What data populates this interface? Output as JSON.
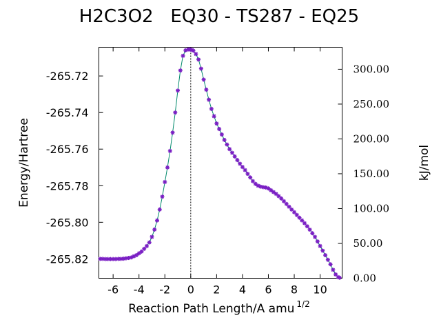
{
  "chart_data": {
    "type": "scatter",
    "title": "H2C3O2   EQ30 - TS287 - EQ25",
    "xlabel": "Reaction Path Length/A amu",
    "xlabel_superscript": "1/2",
    "ylabel": "Energy/Hartree",
    "y2label": "kJ/mol",
    "xlim": [
      -7.1,
      11.7
    ],
    "ylim": [
      -265.8306,
      -265.7043
    ],
    "y2lim": [
      0.0,
      331.6
    ],
    "x_ticks": [
      -6,
      -4,
      -2,
      0,
      2,
      4,
      6,
      8,
      10
    ],
    "x_tick_labels": [
      "-6",
      "-4",
      "-2",
      "0",
      "2",
      "4",
      "6",
      "8",
      "10"
    ],
    "y_ticks": [
      -265.72,
      -265.74,
      -265.76,
      -265.78,
      -265.8,
      -265.82
    ],
    "y_tick_labels": [
      "-265.72",
      "-265.74",
      "-265.76",
      "-265.78",
      "-265.80",
      "-265.82"
    ],
    "y2_ticks": [
      300,
      250,
      200,
      150,
      100,
      50,
      0
    ],
    "y2_tick_labels": [
      "300.00",
      "250.00",
      "200.00",
      "150.00",
      "100.00",
      "50.00",
      "0.00"
    ],
    "grid": false,
    "legend": "none",
    "ts_marker_x": 0.0,
    "colors": {
      "line": "#00896b",
      "marker": "#7a1fc4",
      "axis": "#000000"
    },
    "series": [
      {
        "x": [
          -7.0,
          -6.8,
          -6.6,
          -6.4,
          -6.2,
          -6.0,
          -5.8,
          -5.6,
          -5.4,
          -5.2,
          -5.0,
          -4.8,
          -4.6,
          -4.4,
          -4.2,
          -4.0,
          -3.8,
          -3.6,
          -3.4,
          -3.2,
          -3.0,
          -2.8,
          -2.6,
          -2.4,
          -2.2,
          -2.0,
          -1.8,
          -1.6,
          -1.4,
          -1.2,
          -1.0,
          -0.8,
          -0.6,
          -0.4,
          -0.2,
          -0.1,
          0.0,
          0.1,
          0.2,
          0.4,
          0.6,
          0.8,
          1.0,
          1.2,
          1.4,
          1.6,
          1.8,
          2.0,
          2.2,
          2.4,
          2.6,
          2.8,
          3.0,
          3.2,
          3.4,
          3.6,
          3.8,
          4.0,
          4.2,
          4.4,
          4.6,
          4.8,
          5.0,
          5.2,
          5.4,
          5.6,
          5.8,
          6.0,
          6.2,
          6.4,
          6.6,
          6.8,
          7.0,
          7.2,
          7.4,
          7.6,
          7.8,
          8.0,
          8.2,
          8.4,
          8.6,
          8.8,
          9.0,
          9.2,
          9.4,
          9.6,
          9.8,
          10.0,
          10.2,
          10.4,
          10.6,
          10.8,
          11.0,
          11.2,
          11.4,
          11.5
        ],
        "y": [
          -265.82,
          -265.82,
          -265.8201,
          -265.8201,
          -265.8201,
          -265.8201,
          -265.8201,
          -265.82,
          -265.82,
          -265.8199,
          -265.8197,
          -265.8195,
          -265.8192,
          -265.8186,
          -265.818,
          -265.817,
          -265.816,
          -265.8145,
          -265.813,
          -265.811,
          -265.808,
          -265.804,
          -265.799,
          -265.793,
          -265.786,
          -265.778,
          -265.77,
          -265.761,
          -265.751,
          -265.74,
          -265.728,
          -265.717,
          -265.709,
          -265.706,
          -265.7055,
          -265.7055,
          -265.7056,
          -265.7058,
          -265.7062,
          -265.708,
          -265.711,
          -265.716,
          -265.722,
          -265.7275,
          -265.733,
          -265.738,
          -265.742,
          -265.746,
          -265.749,
          -265.752,
          -265.755,
          -265.7575,
          -265.76,
          -265.762,
          -265.764,
          -265.766,
          -265.768,
          -265.7698,
          -265.7715,
          -265.7735,
          -265.7755,
          -265.7775,
          -265.779,
          -265.78,
          -265.7805,
          -265.7808,
          -265.781,
          -265.7815,
          -265.7825,
          -265.7835,
          -265.7845,
          -265.7857,
          -265.787,
          -265.7885,
          -265.79,
          -265.7915,
          -265.793,
          -265.7945,
          -265.796,
          -265.7975,
          -265.799,
          -265.8005,
          -265.8022,
          -265.804,
          -265.806,
          -265.808,
          -265.8105,
          -265.813,
          -265.8155,
          -265.818,
          -265.8205,
          -265.823,
          -265.826,
          -265.8285,
          -265.83,
          -265.8303
        ]
      }
    ]
  }
}
